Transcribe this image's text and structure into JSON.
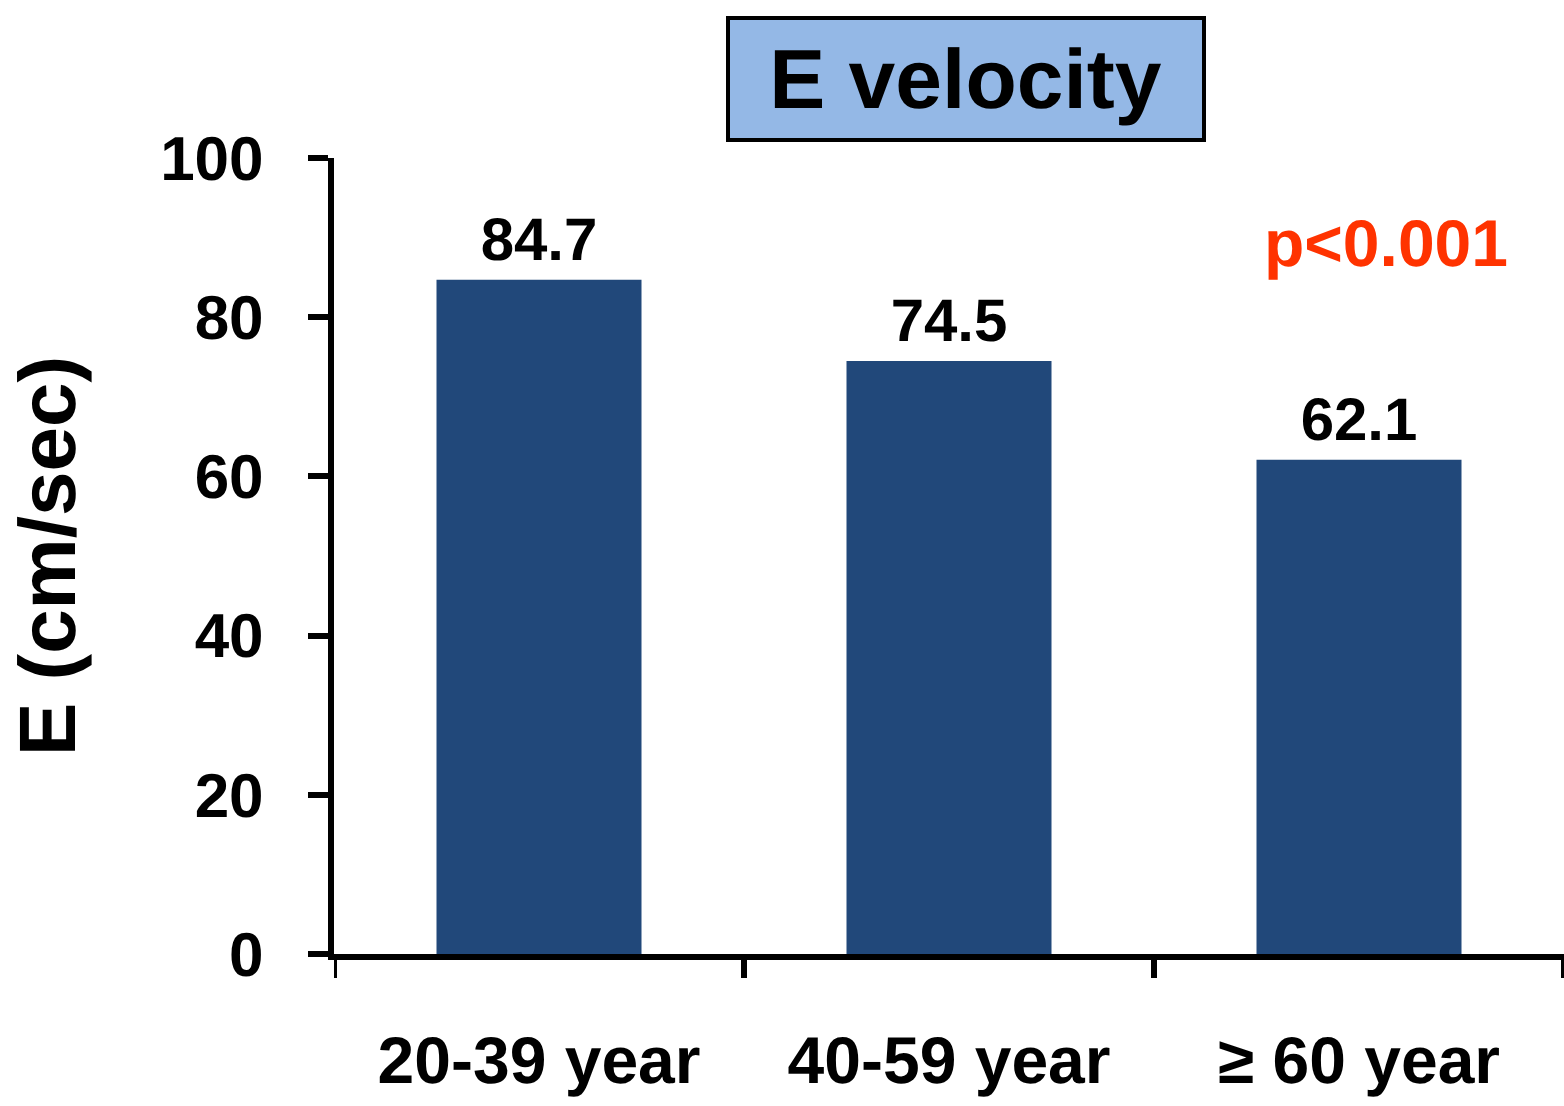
{
  "chart_data": {
    "type": "bar",
    "title": "E velocity",
    "ylabel": "E (cm/sec)",
    "categories": [
      "20-39 year",
      "40-59 year",
      "≥ 60 year"
    ],
    "values": [
      84.7,
      74.5,
      62.1
    ],
    "color": "#21487a",
    "data_labels": true,
    "ylim": [
      0,
      100
    ],
    "yticks": [
      0,
      20,
      40,
      60,
      80,
      100
    ],
    "annotations": [
      "p<0.001"
    ]
  }
}
